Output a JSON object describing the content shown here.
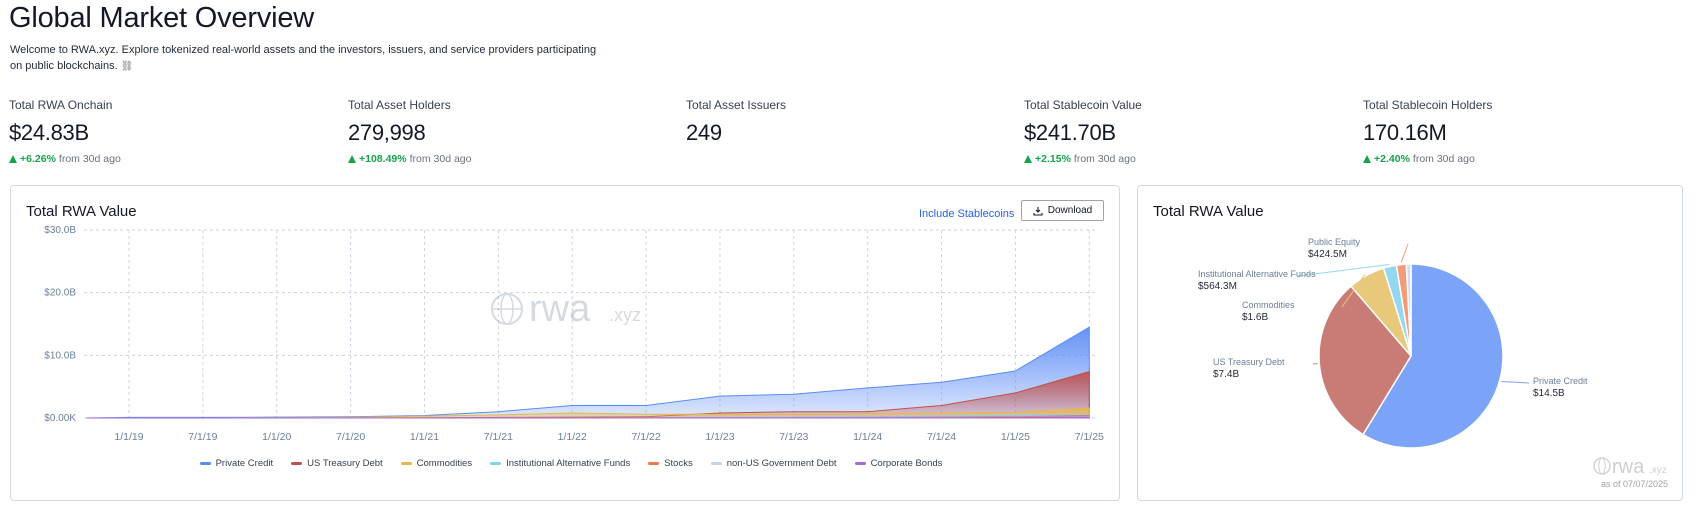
{
  "header": {
    "title": "Global Market Overview",
    "subtitle": "Welcome to RWA.xyz. Explore tokenized real-world assets and the investors, issuers, and service providers participating on public blockchains.",
    "subtitle_link_icon": "link-icon"
  },
  "stats": [
    {
      "label": "Total RWA Onchain",
      "value": "$24.83B",
      "change": "+6.26%",
      "suffix": "from 30d ago"
    },
    {
      "label": "Total Asset Holders",
      "value": "279,998",
      "change": "+108.49%",
      "suffix": "from 30d ago"
    },
    {
      "label": "Total Asset Issuers",
      "value": "249",
      "change": "",
      "suffix": ""
    },
    {
      "label": "Total Stablecoin Value",
      "value": "$241.70B",
      "change": "+2.15%",
      "suffix": "from 30d ago"
    },
    {
      "label": "Total Stablecoin Holders",
      "value": "170.16M",
      "change": "+2.40%",
      "suffix": "from 30d ago"
    }
  ],
  "area_card": {
    "title": "Total RWA Value",
    "stablecoin_toggle": "Include Stablecoins",
    "download_label": "Download",
    "watermark_main": "rwa",
    "watermark_suffix": ".xyz"
  },
  "pie_card": {
    "title": "Total RWA Value",
    "watermark_main": "rwa",
    "watermark_suffix": ".xyz",
    "as_of": "as of 07/07/2025"
  },
  "colors": {
    "private_credit": "#5b8cf5",
    "us_treasury": "#c0504d",
    "commodities": "#e6b84a",
    "alt_funds": "#7fd3ef",
    "stocks": "#f0784a",
    "non_us_gov": "#c7d2e6",
    "corporate_bonds": "#a66bd6",
    "positive": "#16a34a"
  },
  "chart_data": [
    {
      "type": "area",
      "title": "Total RWA Value",
      "x": [
        "1/1/19",
        "7/1/19",
        "1/1/20",
        "7/1/20",
        "1/1/21",
        "7/1/21",
        "1/1/22",
        "7/1/22",
        "1/1/23",
        "7/1/23",
        "1/1/24",
        "7/1/24",
        "1/1/25",
        "7/1/25"
      ],
      "ylim": [
        0,
        30
      ],
      "y_ticks": [
        "$0.00K",
        "$10.0B",
        "$20.0B",
        "$30.0B"
      ],
      "y_units": "B USD",
      "stacked": true,
      "grid": true,
      "legend_position": "bottom",
      "series": [
        {
          "name": "Private Credit",
          "color": "#5b8cf5",
          "values": [
            0.1,
            0.1,
            0.15,
            0.2,
            0.4,
            1.0,
            2.0,
            2.0,
            3.5,
            3.8,
            4.8,
            5.7,
            7.5,
            14.5
          ]
        },
        {
          "name": "US Treasury Debt",
          "color": "#c0504d",
          "values": [
            0,
            0,
            0,
            0,
            0.05,
            0.1,
            0.15,
            0.2,
            0.8,
            1.0,
            1.0,
            2.0,
            4.0,
            7.4
          ]
        },
        {
          "name": "Commodities",
          "color": "#e6b84a",
          "values": [
            0,
            0,
            0.05,
            0.1,
            0.3,
            0.5,
            0.8,
            0.6,
            0.6,
            0.6,
            0.7,
            0.8,
            0.9,
            1.6
          ]
        },
        {
          "name": "Institutional Alternative Funds",
          "color": "#7fd3ef",
          "values": [
            0,
            0,
            0,
            0,
            0,
            0,
            0,
            0.05,
            0.1,
            0.15,
            0.2,
            0.3,
            0.4,
            0.56
          ]
        },
        {
          "name": "Stocks",
          "color": "#f0784a",
          "values": [
            0,
            0,
            0,
            0,
            0,
            0.05,
            0.05,
            0.05,
            0.05,
            0.05,
            0.1,
            0.15,
            0.2,
            0.42
          ]
        },
        {
          "name": "non-US Government Debt",
          "color": "#c7d2e6",
          "values": [
            0,
            0,
            0,
            0,
            0,
            0,
            0,
            0,
            0.01,
            0.02,
            0.03,
            0.05,
            0.1,
            0.2
          ]
        },
        {
          "name": "Corporate Bonds",
          "color": "#a66bd6",
          "values": [
            0,
            0,
            0,
            0,
            0,
            0,
            0,
            0,
            0.01,
            0.02,
            0.03,
            0.05,
            0.1,
            0.15
          ]
        }
      ]
    },
    {
      "type": "pie",
      "title": "Total RWA Value",
      "slices": [
        {
          "label": "Private Credit",
          "value": 14.5,
          "display": "$14.5B",
          "color": "#7ba3f8"
        },
        {
          "label": "US Treasury Debt",
          "value": 7.4,
          "display": "$7.4B",
          "color": "#c97b76"
        },
        {
          "label": "Commodities",
          "value": 1.6,
          "display": "$1.6B",
          "color": "#e8c87a"
        },
        {
          "label": "Institutional Alternative Funds",
          "value": 0.5643,
          "display": "$564.3M",
          "color": "#93d7f0"
        },
        {
          "label": "Public Equity",
          "value": 0.4245,
          "display": "$424.5M",
          "color": "#f39a78"
        },
        {
          "label": "",
          "value": 0.2,
          "display": "",
          "color": "#d4dbe8"
        }
      ]
    }
  ]
}
